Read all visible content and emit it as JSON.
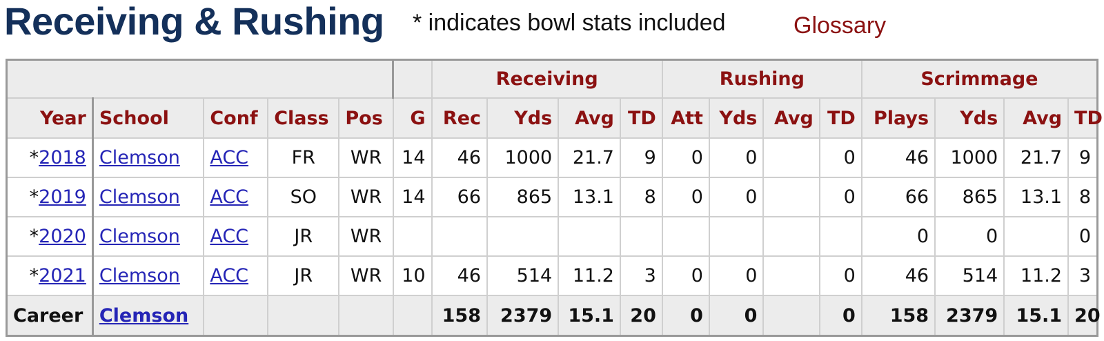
{
  "header": {
    "title": "Receiving & Rushing",
    "note": "* indicates bowl stats included",
    "glossary": "Glossary"
  },
  "table": {
    "groups": [
      "Receiving",
      "Rushing",
      "Scrimmage"
    ],
    "columns": [
      "Year",
      "School",
      "Conf",
      "Class",
      "Pos",
      "G",
      "Rec",
      "Yds",
      "Avg",
      "TD",
      "Att",
      "Yds",
      "Avg",
      "TD",
      "Plays",
      "Yds",
      "Avg",
      "TD"
    ],
    "rows": [
      {
        "mark": "*",
        "year": "2018",
        "school": "Clemson",
        "conf": "ACC",
        "class": "FR",
        "pos": "WR",
        "g": "14",
        "rec": "46",
        "rec_yds": "1000",
        "rec_avg": "21.7",
        "rec_td": "9",
        "att": "0",
        "rush_yds": "0",
        "rush_avg": "",
        "rush_td": "0",
        "plays": "46",
        "scrim_yds": "1000",
        "scrim_avg": "21.7",
        "scrim_td": "9"
      },
      {
        "mark": "*",
        "year": "2019",
        "school": "Clemson",
        "conf": "ACC",
        "class": "SO",
        "pos": "WR",
        "g": "14",
        "rec": "66",
        "rec_yds": "865",
        "rec_avg": "13.1",
        "rec_td": "8",
        "att": "0",
        "rush_yds": "0",
        "rush_avg": "",
        "rush_td": "0",
        "plays": "66",
        "scrim_yds": "865",
        "scrim_avg": "13.1",
        "scrim_td": "8"
      },
      {
        "mark": "*",
        "year": "2020",
        "school": "Clemson",
        "conf": "ACC",
        "class": "JR",
        "pos": "WR",
        "g": "",
        "rec": "",
        "rec_yds": "",
        "rec_avg": "",
        "rec_td": "",
        "att": "",
        "rush_yds": "",
        "rush_avg": "",
        "rush_td": "",
        "plays": "0",
        "scrim_yds": "0",
        "scrim_avg": "",
        "scrim_td": "0"
      },
      {
        "mark": "*",
        "year": "2021",
        "school": "Clemson",
        "conf": "ACC",
        "class": "JR",
        "pos": "WR",
        "g": "10",
        "rec": "46",
        "rec_yds": "514",
        "rec_avg": "11.2",
        "rec_td": "3",
        "att": "0",
        "rush_yds": "0",
        "rush_avg": "",
        "rush_td": "0",
        "plays": "46",
        "scrim_yds": "514",
        "scrim_avg": "11.2",
        "scrim_td": "3"
      }
    ],
    "career": {
      "label": "Career",
      "school": "Clemson",
      "rec": "158",
      "rec_yds": "2379",
      "rec_avg": "15.1",
      "rec_td": "20",
      "att": "0",
      "rush_yds": "0",
      "rush_avg": "",
      "rush_td": "0",
      "plays": "158",
      "scrim_yds": "2379",
      "scrim_avg": "15.1",
      "scrim_td": "20"
    }
  },
  "colors": {
    "title": "#14305a",
    "header_text": "#8b1111",
    "link": "#2525b6",
    "header_bg": "#ececec"
  }
}
